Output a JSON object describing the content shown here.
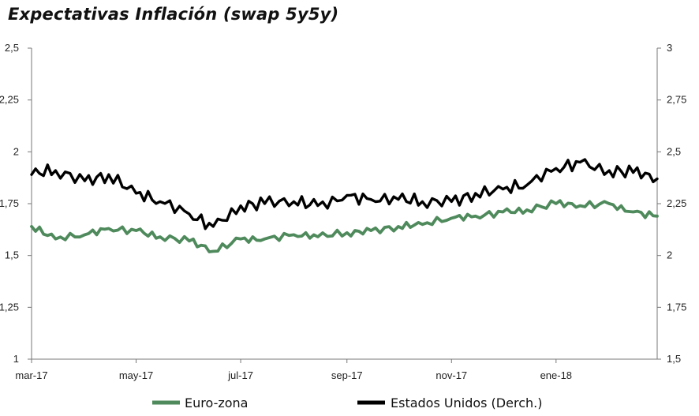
{
  "chart_data": {
    "type": "line",
    "title": "Expectativas Inflación (swap 5y5y)",
    "x_tick_labels": [
      "mar-17",
      "may-17",
      "jul-17",
      "sep-17",
      "nov-17",
      "ene-18"
    ],
    "y_left_ticks": [
      "1",
      "1,25",
      "1,5",
      "1,75",
      "2",
      "2,25",
      "2,5"
    ],
    "y_right_ticks": [
      "1,5",
      "1,75",
      "2",
      "2,25",
      "2,5",
      "2,75",
      "3"
    ],
    "ylim_left": [
      1,
      2.5
    ],
    "ylim_right": [
      1.5,
      3
    ],
    "x": [
      "2017-03-01",
      "2017-03-15",
      "2017-04-01",
      "2017-04-15",
      "2017-05-01",
      "2017-05-15",
      "2017-06-01",
      "2017-06-15",
      "2017-07-01",
      "2017-07-15",
      "2017-08-01",
      "2017-08-15",
      "2017-09-01",
      "2017-09-15",
      "2017-10-01",
      "2017-10-15",
      "2017-11-01",
      "2017-11-15",
      "2017-12-01",
      "2017-12-15",
      "2018-01-01",
      "2018-01-15",
      "2018-02-01",
      "2018-02-15",
      "2018-03-01"
    ],
    "series": [
      {
        "name": "Euro-zona",
        "axis": "left",
        "color": "#4e8a5b",
        "values": [
          1.64,
          1.58,
          1.6,
          1.63,
          1.62,
          1.59,
          1.57,
          1.52,
          1.58,
          1.58,
          1.6,
          1.59,
          1.61,
          1.62,
          1.64,
          1.65,
          1.68,
          1.69,
          1.71,
          1.72,
          1.75,
          1.74,
          1.75,
          1.71,
          1.69
        ]
      },
      {
        "name": "Estados Unidos (Derch.)",
        "axis": "right",
        "color": "#000000",
        "values": [
          2.39,
          2.41,
          2.36,
          2.39,
          2.3,
          2.26,
          2.2,
          2.14,
          2.24,
          2.25,
          2.26,
          2.24,
          2.29,
          2.27,
          2.27,
          2.26,
          2.26,
          2.3,
          2.32,
          2.34,
          2.42,
          2.45,
          2.41,
          2.4,
          2.37
        ]
      }
    ],
    "grid": false,
    "legend_position": "bottom"
  }
}
